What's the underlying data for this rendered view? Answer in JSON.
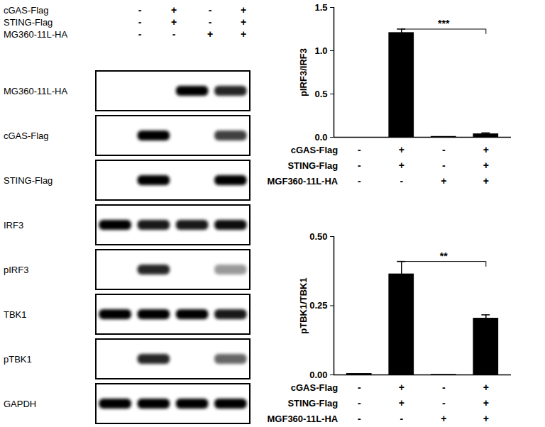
{
  "blot": {
    "conditions": [
      {
        "name": "cGAS-Flag",
        "values": [
          "-",
          "+",
          "-",
          "+"
        ]
      },
      {
        "name": "STING-Flag",
        "values": [
          "-",
          "+",
          "-",
          "+"
        ]
      },
      {
        "name": "MG360-11L-HA",
        "values": [
          "-",
          "-",
          "+",
          "+"
        ]
      }
    ],
    "rows": [
      {
        "label": "MG360-11L-HA",
        "bands": [
          0,
          0,
          1,
          0.85
        ]
      },
      {
        "label": "cGAS-Flag",
        "bands": [
          0,
          1,
          0,
          0.75
        ]
      },
      {
        "label": "STING-Flag",
        "bands": [
          0,
          1,
          0,
          1
        ]
      },
      {
        "label": "IRF3",
        "bands": [
          1,
          0.9,
          0.9,
          0.95
        ]
      },
      {
        "label": "pIRF3",
        "bands": [
          0,
          0.85,
          0,
          0.4
        ]
      },
      {
        "label": "TBK1",
        "bands": [
          1,
          1,
          1,
          0.9
        ]
      },
      {
        "label": "pTBK1",
        "bands": [
          0,
          0.85,
          0,
          0.6
        ]
      },
      {
        "label": "GAPDH",
        "bands": [
          1,
          1,
          1,
          1
        ]
      }
    ]
  },
  "chart_data": [
    {
      "type": "bar",
      "y_label": "pIRF3/IRF3",
      "categories": [
        null,
        null,
        null,
        null
      ],
      "values": [
        0,
        1.21,
        0.01,
        0.04
      ],
      "errors": [
        0,
        0.04,
        0,
        0.01
      ],
      "color": "#000000",
      "ylim": [
        0,
        1.5
      ],
      "yticks": [
        {
          "value": 0,
          "label": "0.0"
        },
        {
          "value": 0.5,
          "label": "0.5"
        },
        {
          "value": 1,
          "label": "1.0"
        },
        {
          "value": 1.5,
          "label": "1.5"
        }
      ],
      "conditions": [
        {
          "name": "cGAS-Flag",
          "values": [
            "-",
            "+",
            "-",
            "+"
          ]
        },
        {
          "name": "STING-Flag",
          "values": [
            "-",
            "+",
            "-",
            "+"
          ]
        },
        {
          "name": "MGF360-11L-HA",
          "values": [
            "-",
            "-",
            "+",
            "+"
          ]
        }
      ],
      "significance": {
        "from": 1,
        "to": 3,
        "label": "***"
      }
    },
    {
      "type": "bar",
      "y_label": "pTBK1/TBK1",
      "categories": [
        null,
        null,
        null,
        null
      ],
      "values": [
        0.005,
        0.365,
        0.002,
        0.205
      ],
      "errors": [
        0,
        0.045,
        0,
        0.012
      ],
      "color": "#000000",
      "ylim": [
        0,
        0.5
      ],
      "yticks": [
        {
          "value": 0,
          "label": "0.00"
        },
        {
          "value": 0.25,
          "label": "0.25"
        },
        {
          "value": 0.5,
          "label": "0.50"
        }
      ],
      "conditions": [
        {
          "name": "cGAS-Flag",
          "values": [
            "-",
            "+",
            "-",
            "+"
          ]
        },
        {
          "name": "STING-Flag",
          "values": [
            "-",
            "+",
            "-",
            "+"
          ]
        },
        {
          "name": "MGF360-11L-HA",
          "values": [
            "-",
            "-",
            "+",
            "+"
          ]
        }
      ],
      "significance": {
        "from": 1,
        "to": 3,
        "label": "**"
      }
    }
  ]
}
